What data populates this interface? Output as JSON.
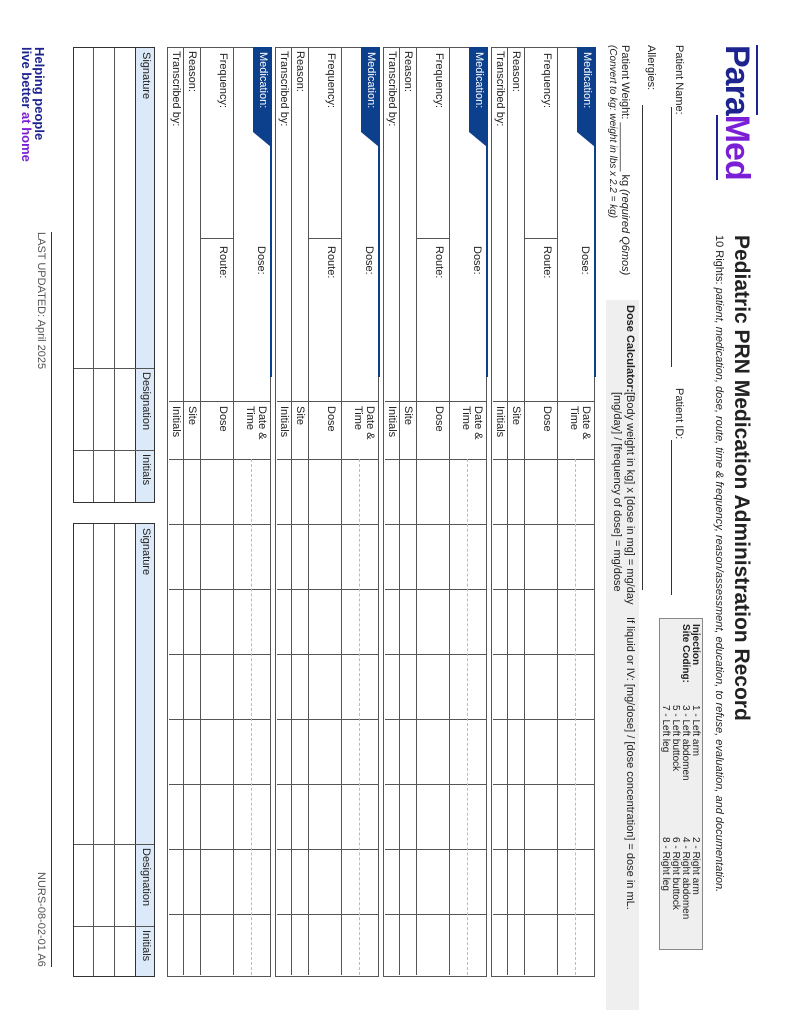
{
  "logo": {
    "part1": "Para",
    "part2": "Med",
    "colors": {
      "para": "#1d2490",
      "med": "#7b1fd6"
    }
  },
  "header": {
    "title": "Pediatric PRN Medication Administration Record",
    "subtitle_lead": "10 Rights: ",
    "subtitle_rest": "patient, medication, dose, route, time & frequency, reason/assessment, education, to refuse, evaluation, and documentation."
  },
  "patient": {
    "name_label": "Patient Name:",
    "id_label": "Patient ID:",
    "allergies_label": "Allergies:",
    "weight_label": "Patient Weight: ________ kg",
    "weight_note": "(required Q6mos)",
    "convert_note": "(Convert to kg: weight in lbs x 2.2 = kg)"
  },
  "injection_site": {
    "heading": "Injection Site Coding:",
    "left": [
      "1 - Left arm",
      "3 - Left abdomen",
      "5 - Left buttock",
      "7 - Left leg"
    ],
    "right": [
      "2 - Right arm",
      "4 - Right abdomen",
      "6 - Right buttock",
      "8 - Right leg"
    ]
  },
  "dose_calculator": {
    "label": "Dose Calculator:",
    "formula1": "[Body weight in kg] x [dose in mg] = mg/day",
    "formula2": "[mg/day] / [frequency of dose] = mg/dose",
    "liquid": "If liquid or IV: [mg/dose] / [dose concentration] = dose in mL."
  },
  "med_block": {
    "medication": "Medication:",
    "dose": "Dose:",
    "frequency": "Frequency:",
    "route": "Route:",
    "reason": "Reason:",
    "transcribed": "Transcribed by:",
    "row_headers": {
      "datetime1": "Date &",
      "datetime2": "Time",
      "dose": "Dose",
      "site": "Site",
      "initials": "Initials"
    },
    "count": 4,
    "data_columns": 8,
    "accent": "#0c3f8c"
  },
  "signature_table": {
    "signature": "Signature",
    "designation": "Designation",
    "initials": "Initials",
    "rows": 3,
    "header_color": "#dce9f8"
  },
  "footer": {
    "tagline1": "Helping people",
    "tagline2a": "live better ",
    "tagline2b": "at home",
    "updated": "LAST UPDATED: April 2025",
    "code": "NURS-08-02-01 A6"
  }
}
